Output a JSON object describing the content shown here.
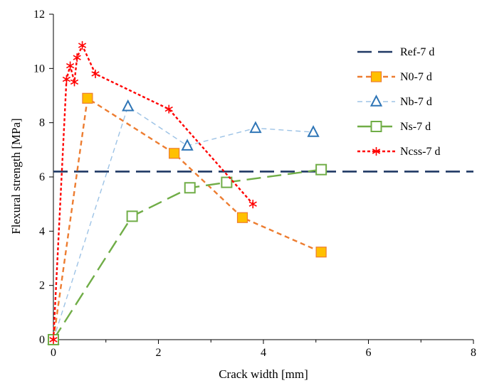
{
  "chart_data": {
    "type": "line",
    "title": "",
    "xlabel": "Crack width [mm]",
    "ylabel": "Flexural strength [MPa]",
    "xlim": [
      0,
      8
    ],
    "ylim": [
      0,
      12
    ],
    "xticks": [
      0,
      2,
      4,
      6,
      8
    ],
    "yticks": [
      0,
      2,
      4,
      6,
      8,
      10,
      12
    ],
    "grid": false,
    "legend_position": "right",
    "series": [
      {
        "name": "Ref-7 d",
        "color": "#1f3864",
        "style": "long-dash",
        "marker": "none",
        "x": [
          0,
          8
        ],
        "y": [
          6.2,
          6.2
        ]
      },
      {
        "name": "N0-7 d",
        "color": "#ed7d31",
        "marker_fill": "#ffc000",
        "style": "dash",
        "marker": "square",
        "x": [
          0,
          0.65,
          2.3,
          3.6,
          5.1
        ],
        "y": [
          0,
          8.9,
          6.87,
          4.5,
          3.23
        ]
      },
      {
        "name": "Nb-7 d",
        "color": "#2e75b6",
        "line_color": "#9dc3e6",
        "style": "dash",
        "marker": "triangle",
        "x": [
          0,
          1.42,
          2.55,
          3.85,
          4.95
        ],
        "y": [
          0,
          8.6,
          7.15,
          7.8,
          7.65
        ]
      },
      {
        "name": "Ns-7 d",
        "color": "#70ad47",
        "style": "long-dash",
        "marker": "square-open",
        "x": [
          0,
          1.5,
          2.6,
          3.3,
          5.1
        ],
        "y": [
          0,
          4.55,
          5.6,
          5.8,
          6.27
        ]
      },
      {
        "name": "Ncss-7 d",
        "color": "#ff0000",
        "style": "dot",
        "marker": "asterisk",
        "x": [
          0,
          0.25,
          0.32,
          0.4,
          0.45,
          0.55,
          0.8,
          2.2,
          3.8
        ],
        "y": [
          0,
          9.6,
          10.1,
          9.5,
          10.4,
          10.85,
          9.8,
          8.5,
          5.0
        ]
      }
    ]
  }
}
